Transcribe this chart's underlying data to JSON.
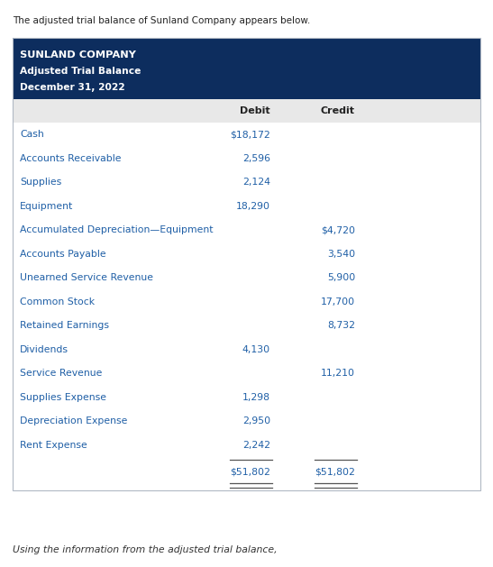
{
  "top_text": "The adjusted trial balance of Sunland Company appears below.",
  "header_line1": "SUNLAND COMPANY",
  "header_line2": "Adjusted Trial Balance",
  "header_line3": "December 31, 2022",
  "header_bg": "#0d2d5e",
  "header_text_color": "#ffffff",
  "col_header_bg": "#e8e8e8",
  "col_debit": "Debit",
  "col_credit": "Credit",
  "rows": [
    {
      "account": "Cash",
      "debit": "$18,172",
      "credit": ""
    },
    {
      "account": "Accounts Receivable",
      "debit": "2,596",
      "credit": ""
    },
    {
      "account": "Supplies",
      "debit": "2,124",
      "credit": ""
    },
    {
      "account": "Equipment",
      "debit": "18,290",
      "credit": ""
    },
    {
      "account": "Accumulated Depreciation—Equipment",
      "debit": "",
      "credit": "$4,720"
    },
    {
      "account": "Accounts Payable",
      "debit": "",
      "credit": "3,540"
    },
    {
      "account": "Unearned Service Revenue",
      "debit": "",
      "credit": "5,900"
    },
    {
      "account": "Common Stock",
      "debit": "",
      "credit": "17,700"
    },
    {
      "account": "Retained Earnings",
      "debit": "",
      "credit": "8,732"
    },
    {
      "account": "Dividends",
      "debit": "4,130",
      "credit": ""
    },
    {
      "account": "Service Revenue",
      "debit": "",
      "credit": "11,210"
    },
    {
      "account": "Supplies Expense",
      "debit": "1,298",
      "credit": ""
    },
    {
      "account": "Depreciation Expense",
      "debit": "2,950",
      "credit": ""
    },
    {
      "account": "Rent Expense",
      "debit": "2,242",
      "credit": ""
    }
  ],
  "total_debit": "$51,802",
  "total_credit": "$51,802",
  "bottom_text": "Using the information from the adjusted trial balance,",
  "account_color": "#1f5fa6",
  "value_color": "#1f5fa6",
  "bg_color": "#ffffff",
  "border_color": "#b0b8c4",
  "line_color": "#555555",
  "top_text_color": "#222222",
  "bottom_text_color": "#333333",
  "col_header_text_color": "#222222",
  "fig_width": 5.47,
  "fig_height": 6.29,
  "dpi": 100
}
